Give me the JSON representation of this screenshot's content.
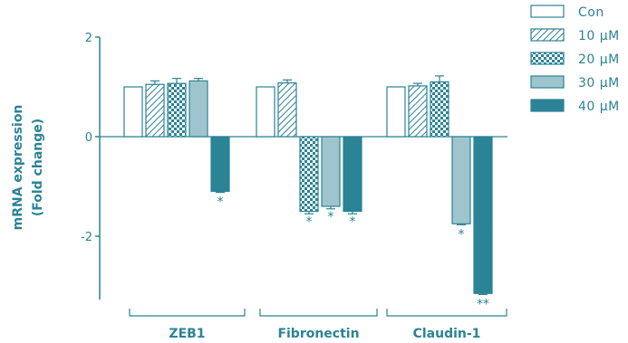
{
  "chart_data": {
    "type": "bar",
    "title": "",
    "xlabel": "",
    "ylabel_line1": "mRNA expression",
    "ylabel_line2": "(Fold change)",
    "ylim": [
      -3.3,
      2
    ],
    "yticks": [
      2,
      0,
      -2
    ],
    "categories": [
      "ZEB1",
      "Fibronectin",
      "Claudin-1"
    ],
    "series": [
      {
        "name": "Con",
        "pattern": "empty",
        "values": [
          1.0,
          1.0,
          1.0
        ],
        "errors": [
          0,
          0,
          0
        ],
        "sig": [
          "",
          "",
          ""
        ]
      },
      {
        "name": "10 μM",
        "pattern": "hatch",
        "values": [
          1.05,
          1.08,
          1.02
        ],
        "errors": [
          0.07,
          0.06,
          0.05
        ],
        "sig": [
          "",
          "",
          ""
        ]
      },
      {
        "name": "20 μM",
        "pattern": "check",
        "values": [
          1.07,
          null,
          1.1
        ],
        "errors": [
          0.1,
          0,
          0.12
        ],
        "sig": [
          "",
          "*",
          ""
        ]
      },
      {
        "name": "30 μM",
        "pattern": "light",
        "values": [
          1.12,
          -1.4,
          -1.75
        ],
        "errors": [
          0.05,
          0.05,
          0.02
        ],
        "sig": [
          "",
          "*",
          "*"
        ]
      },
      {
        "name": "40 μM",
        "pattern": "dark",
        "values": [
          -1.1,
          -1.5,
          -3.15
        ],
        "errors": [
          0.02,
          0.05,
          0.02
        ],
        "sig": [
          "*",
          "*",
          "**"
        ]
      }
    ],
    "extra_bars": [
      {
        "category": "Fibronectin",
        "series": "20 μM",
        "value": -1.5,
        "error": 0.05
      }
    ],
    "legend_position": "top-right",
    "grid": false,
    "colors": {
      "axis": "#2b8396",
      "light": "#9ec5cd",
      "dark": "#2b8396"
    }
  }
}
